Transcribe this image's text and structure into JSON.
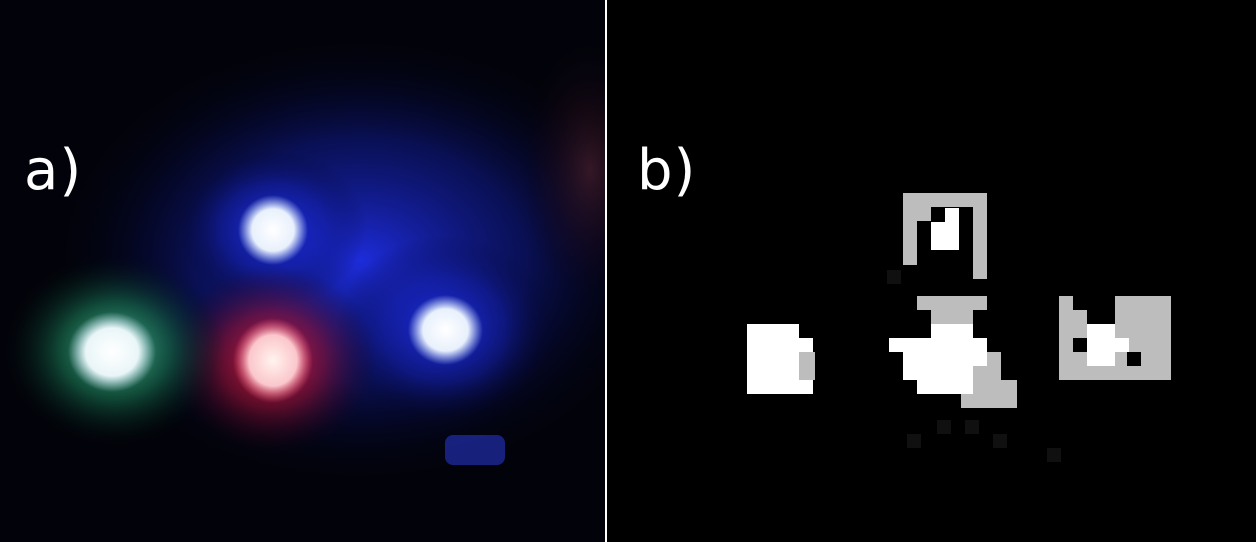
{
  "panels": [
    {
      "label": "a)"
    },
    {
      "label": "b)"
    }
  ],
  "colors": {
    "background_a": "#02030a",
    "background_b": "#000000",
    "blue_glow": "#1a2cff",
    "red_glow": "#c8102e",
    "green_glow": "#2fae7a",
    "led_core": "#f2f8ff",
    "binary_white": "#ffffff",
    "binary_gray": "#bdbdbd"
  }
}
